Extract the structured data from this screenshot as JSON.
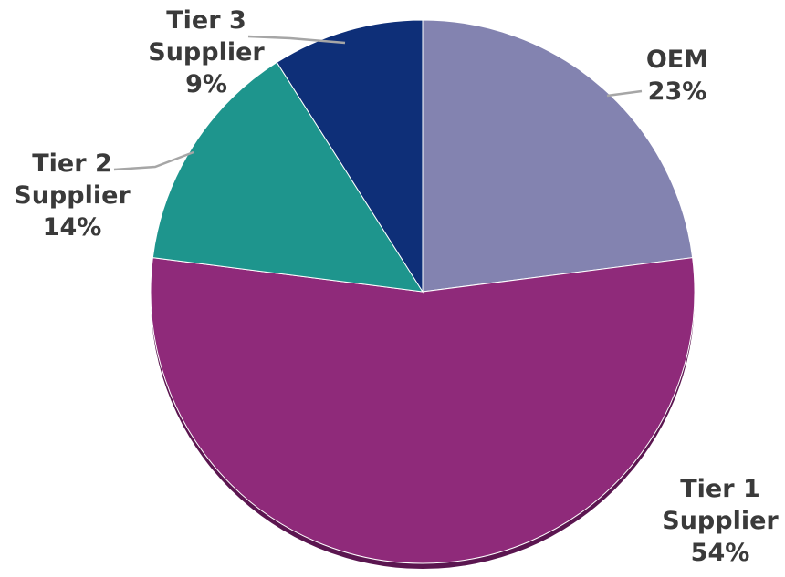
{
  "chart_data": {
    "type": "pie",
    "slices": [
      {
        "label_lines": [
          "OEM"
        ],
        "value": 23,
        "value_label": "23%",
        "color": "#8383b0"
      },
      {
        "label_lines": [
          "Tier 1",
          "Supplier"
        ],
        "value": 54,
        "value_label": "54%",
        "color": "#8f2a7a"
      },
      {
        "label_lines": [
          "Tier 2",
          "Supplier"
        ],
        "value": 14,
        "value_label": "14%",
        "color": "#1e958d"
      },
      {
        "label_lines": [
          "Tier 3",
          "Supplier"
        ],
        "value": 9,
        "value_label": "9%",
        "color": "#0e2f78"
      }
    ],
    "start_angle": "12 o'clock",
    "direction": "clockwise",
    "legend": "none",
    "shadow_color": "#5b1650"
  }
}
